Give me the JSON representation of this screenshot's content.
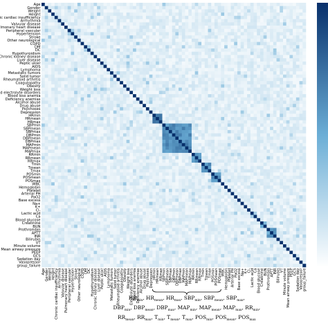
{
  "chart_data": {
    "type": "heatmap",
    "title": "",
    "xlabel": "",
    "ylabel": "",
    "colorbar": {
      "low_color": "#ffffff",
      "high_color": "#08306b",
      "range": [
        0,
        1
      ]
    },
    "grid": false,
    "legend": "colorbar-right",
    "y_labels": [
      "Age",
      "Gender",
      "Weight",
      "Height",
      "Chronic cardiac insufficiency",
      "Arrhythmia",
      "Valvular disease",
      "Pulmonary heart disease",
      "Peripheral vascular",
      "Hypertension",
      "Stroke",
      "Other neurological",
      "COPD",
      "DM",
      "DC",
      "Hypothyroidism",
      "Chronic kidney disease",
      "Liver disease",
      "Peptic ulcer",
      "AIDS",
      "Lymphoma",
      "Metastatic tumors",
      "Solid tumor",
      "Rheumatoid arthritis",
      "Coagulopathy",
      "Obesity",
      "Weight loss",
      "Fluid and electrolyte disorders",
      "Blood loss anemia",
      "Deficiency anemias",
      "Alcohol abuse",
      "Drug abuse",
      "Psychoses",
      "Depression",
      "HRmin",
      "HRmean",
      "HRmax",
      "SBPmin",
      "SBPmean",
      "SBPmax",
      "DBPmin",
      "DBPmean",
      "DBPmax",
      "MAPmin",
      "MAPmean",
      "MAPmax",
      "RRmin",
      "RRmean",
      "RRmax",
      "Tmin",
      "Tmean",
      "Tmax",
      "POSmin",
      "POSmean",
      "POSmax",
      "WBC",
      "Hemoglobin",
      "Platelet",
      "Arterial PH",
      "PaO2",
      "Base excess",
      "Na+",
      "K+",
      "Cl-",
      "Lactic acid",
      "Ca",
      "Blood glucose",
      "Creatinine",
      "BUN",
      "Prothrombin",
      "APTT",
      "INR",
      "Bilirubin",
      "VT",
      "Minute volume",
      "Mean airway pressure",
      "PEEP",
      "GCS",
      "Sedation day",
      "Vasopressor",
      "group_failure"
    ],
    "x_labels": [
      "Age",
      "Gender",
      "Weight",
      "Height",
      "Chronic cardiac insufficiency",
      "Arrhythmia",
      "Valvular disease",
      "Pulmonary heart disease",
      "Peripheral vascular",
      "Hypertension",
      "Stroke",
      "Other neurological",
      "COPD",
      "DM",
      "DC",
      "Hypothyroidism",
      "Chronic kidney disease",
      "Liver disease",
      "Peptic ulcer",
      "AIDS",
      "Lymphoma",
      "Metastatic tumors",
      "Solid tumor",
      "Rheumatoid arthritis",
      "Coagulopathy",
      "Obesity",
      "Weight loss",
      "Electrolyte disorders",
      "Blood loss anemia",
      "Deficiency anemias",
      "Alcohol abuse",
      "Drug abuse",
      "Psychoses",
      "Depression",
      "HRmin",
      "HRmean",
      "HRmax",
      "SBPmin",
      "SBPmean",
      "SBPmax",
      "DBPmin",
      "DBPmean",
      "DBPmax",
      "MAPmin",
      "MAPmean",
      "MAPmax",
      "RRmin",
      "RRmean",
      "RRmax",
      "Tmin",
      "Tmean",
      "Tmax",
      "POSmin",
      "POSmean",
      "POSmax",
      "WBC",
      "Hemoglobin",
      "Platelet",
      "Arterial PH",
      "PaO2",
      "Base excess",
      "Na+",
      "K+",
      "Cl-",
      "Lactic acid",
      "Ca",
      "Blood glucose",
      "Creatinine",
      "BUN",
      "Prothrombin",
      "APTT",
      "INR",
      "Bilirubin",
      "VT",
      "Minute volume",
      "Mean airway pressure",
      "PEEP",
      "GCS",
      "Sedation day",
      "Vasopressor",
      "group_failure"
    ],
    "diagonal_value": 1.0,
    "background_value": 0.1,
    "blocks": [
      {
        "rows": [
          "HRmin",
          "HRmax"
        ],
        "value": 0.72
      },
      {
        "rows": [
          "SBPmin",
          "MAPmax"
        ],
        "value": 0.62
      },
      {
        "rows": [
          "RRmin",
          "RRmax"
        ],
        "value": 0.6
      },
      {
        "rows": [
          "Tmin",
          "Tmax"
        ],
        "value": 0.62
      },
      {
        "rows": [
          "POSmin",
          "POSmax"
        ],
        "value": 0.62
      },
      {
        "rows": [
          "Creatinine",
          "BUN"
        ],
        "value": 0.5
      },
      {
        "rows": [
          "Prothrombin",
          "INR"
        ],
        "value": 0.55
      }
    ],
    "annotation": {
      "line1": [
        {
          "base": "HR",
          "sub": "min"
        },
        {
          "base": "HR",
          "sub": "mean"
        },
        {
          "base": "HR",
          "sub": "max"
        },
        {
          "base": "SBP",
          "sub": "min"
        },
        {
          "base": "SBP",
          "sub": "mean"
        },
        {
          "base": "SBP",
          "sub": "max"
        }
      ],
      "line2": [
        {
          "base": "DBP",
          "sub": "min"
        },
        {
          "base": "DBP",
          "sub": "mean"
        },
        {
          "base": "DBP",
          "sub": "max"
        },
        {
          "base": "MAP",
          "sub": "min"
        },
        {
          "base": "MAP",
          "sub": "mean"
        },
        {
          "base": "MAP",
          "sub": "max"
        },
        {
          "base": "RR",
          "sub": "min"
        }
      ],
      "line3": [
        {
          "base": "RR",
          "sub": "mean"
        },
        {
          "base": "RR",
          "sub": "max"
        },
        {
          "base": "T",
          "sub": "min"
        },
        {
          "base": "T",
          "sub": "mean"
        },
        {
          "base": "T",
          "sub": "max"
        },
        {
          "base": "POS",
          "sub": "min"
        },
        {
          "base": "POS",
          "sub": "mean"
        },
        {
          "base": "POS",
          "sub": "max"
        }
      ]
    }
  }
}
